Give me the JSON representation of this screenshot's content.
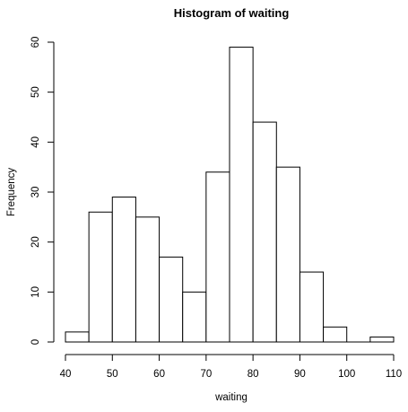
{
  "chart_data": {
    "type": "bar",
    "title": "Histogram of waiting",
    "xlabel": "waiting",
    "ylabel": "Frequency",
    "bins": [
      {
        "from": 40,
        "to": 45,
        "count": 2
      },
      {
        "from": 45,
        "to": 50,
        "count": 26
      },
      {
        "from": 50,
        "to": 55,
        "count": 29
      },
      {
        "from": 55,
        "to": 60,
        "count": 25
      },
      {
        "from": 60,
        "to": 65,
        "count": 17
      },
      {
        "from": 65,
        "to": 70,
        "count": 10
      },
      {
        "from": 70,
        "to": 75,
        "count": 34
      },
      {
        "from": 75,
        "to": 80,
        "count": 59
      },
      {
        "from": 80,
        "to": 85,
        "count": 44
      },
      {
        "from": 85,
        "to": 90,
        "count": 35
      },
      {
        "from": 90,
        "to": 95,
        "count": 14
      },
      {
        "from": 95,
        "to": 100,
        "count": 3
      },
      {
        "from": 100,
        "to": 105,
        "count": 0
      },
      {
        "from": 105,
        "to": 110,
        "count": 1
      }
    ],
    "xlim": [
      40,
      110
    ],
    "ylim": [
      0,
      60
    ],
    "x_ticks": [
      40,
      50,
      60,
      70,
      80,
      90,
      100,
      110
    ],
    "y_ticks": [
      0,
      10,
      20,
      30,
      40,
      50,
      60
    ],
    "grid": false,
    "colors": {
      "bar_fill": "#ffffff",
      "bar_stroke": "#000000"
    }
  }
}
